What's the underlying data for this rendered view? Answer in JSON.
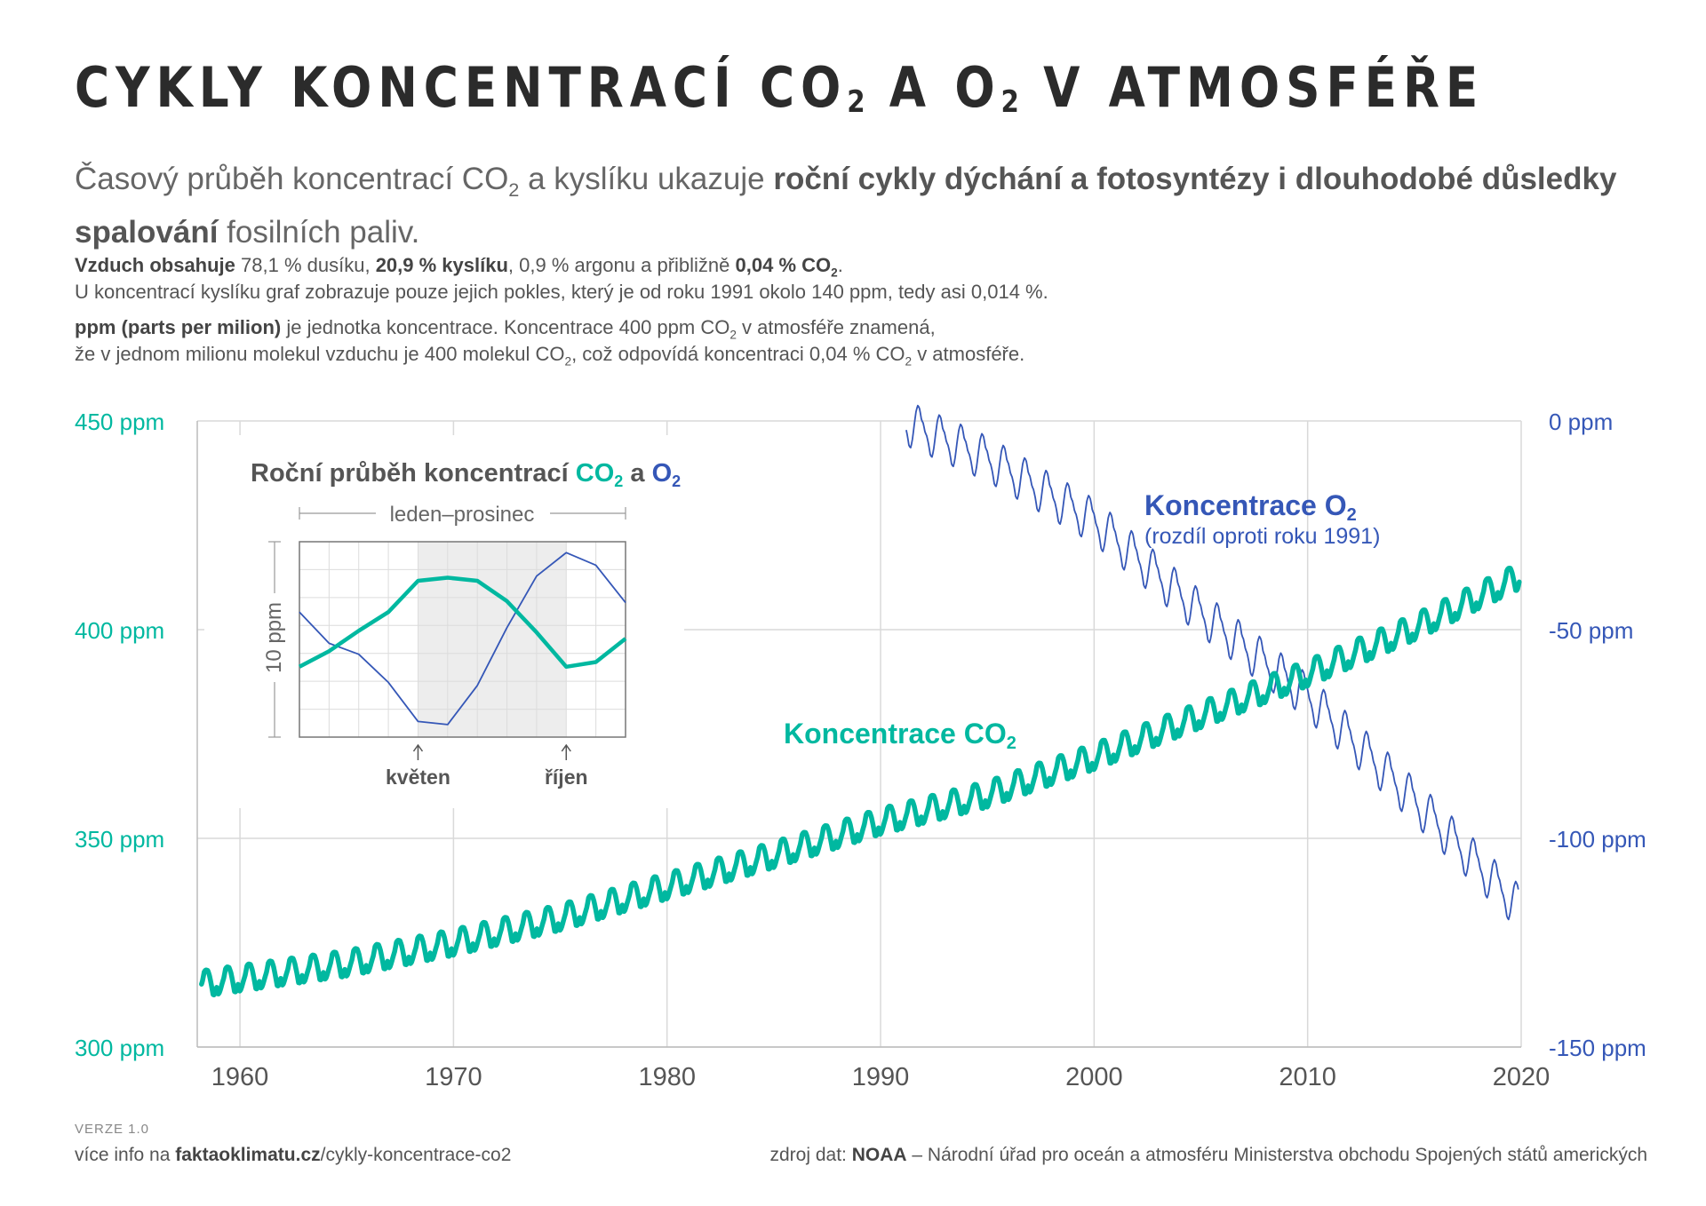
{
  "title": {
    "main": "CYKLY KONCENTRACÍ CO",
    "sub1": "2",
    "mid": " A O",
    "sub2": "2",
    "end": " V ATMOSFÉŘE"
  },
  "lead": {
    "p1": "Časový průběh koncentrací CO",
    "sub": "2",
    "p2": " a kyslíku ukazuje ",
    "b1": "roční cykly dýchání a fotosyntézy i dlouhodobé důsledky spalování",
    "p3": " fosilních paliv."
  },
  "info": {
    "l1_b": "Vzduch obsahuje",
    "l1_a": " 78,1 % dusíku, ",
    "l1_o2": "20,9 % kyslíku",
    "l1_c": ", 0,9 % argonu a přibližně ",
    "l1_co2": "0,04 % CO",
    "l1_co2_sub": "2",
    "l1_end": ".",
    "l2": "U koncentrací kyslíku graf zobrazuje pouze jejich pokles, který je od roku 1991 okolo 140 ppm, tedy asi 0,014 %.",
    "l3_b": "ppm (parts per milion)",
    "l3": " je jednotka koncentrace. Koncentrace 400 ppm CO",
    "l3_sub": "2",
    "l3_end": " v atmosféře znamená,",
    "l4_a": "že v jednom milionu molekul vzduchu je 400 molekul CO",
    "l4_sub": "2",
    "l4_b": ", což odpovídá koncentraci 0,04 % CO",
    "l4_sub2": "2",
    "l4_c": " v atmosféře."
  },
  "colors": {
    "co2": "#00b8a0",
    "o2": "#3557b7",
    "grid": "#d9d9d9",
    "text": "#555555",
    "shade": "#ededed"
  },
  "chart_data": {
    "type": "line",
    "x_range": [
      1958,
      2020
    ],
    "x_ticks": [
      "1960",
      "1970",
      "1980",
      "1990",
      "2000",
      "2010",
      "2020"
    ],
    "y_left": {
      "range": [
        300,
        450
      ],
      "unit": "ppm",
      "ticks": [
        "300 ppm",
        "350 ppm",
        "400 ppm",
        "450 ppm"
      ]
    },
    "y_right": {
      "range": [
        -150,
        0
      ],
      "unit": "ppm",
      "ticks": [
        "-150 ppm",
        "-100 ppm",
        "-50 ppm",
        "0 ppm"
      ]
    },
    "series": [
      {
        "name": "Koncentrace CO₂",
        "axis": "left",
        "trend_points": [
          [
            1958,
            315
          ],
          [
            1965,
            320
          ],
          [
            1970,
            325
          ],
          [
            1975,
            331
          ],
          [
            1980,
            338.5
          ],
          [
            1985,
            346
          ],
          [
            1990,
            354
          ],
          [
            1995,
            360.5
          ],
          [
            2000,
            369.5
          ],
          [
            2005,
            379.5
          ],
          [
            2010,
            389.5
          ],
          [
            2015,
            400.5
          ],
          [
            2020,
            413
          ]
        ],
        "seasonal_amplitude_ppm": 3.2
      },
      {
        "name": "Koncentrace O₂",
        "subtitle": "(rozdíl oproti roku 1991)",
        "axis": "right",
        "trend_points": [
          [
            1991,
            0
          ],
          [
            1995,
            -9
          ],
          [
            2000,
            -24
          ],
          [
            2005,
            -46
          ],
          [
            2010,
            -66
          ],
          [
            2015,
            -91
          ],
          [
            2019.8,
            -116
          ]
        ],
        "seasonal_amplitude_ppm": 5.5
      }
    ],
    "labels": {
      "co2": "Koncentrace CO",
      "o2": "Koncentrace O",
      "o2_sub": "(rozdíl oproti roku 1991)",
      "sub": "2"
    },
    "inset": {
      "title_a": "Roční průběh koncentrací ",
      "title_co2": "CO",
      "title_mid": " a ",
      "title_o2": "O",
      "title_sub": "2",
      "range_label": "leden–prosinec",
      "y_label": "10 ppm",
      "y_scale_ppm": 10,
      "months": [
        "1",
        "2",
        "3",
        "4",
        "5",
        "6",
        "7",
        "8",
        "9",
        "10",
        "11",
        "12"
      ],
      "shaded_months": [
        "5",
        "10"
      ],
      "markers": [
        "květen",
        "říjen"
      ],
      "co2_values_ppm": [
        2.0,
        3.0,
        4.3,
        5.5,
        7.5,
        7.7,
        7.5,
        6.2,
        4.2,
        2.0,
        2.3,
        3.8
      ],
      "o2_values_ppm": [
        5.5,
        3.5,
        2.8,
        1.0,
        -1.5,
        -1.7,
        0.8,
        4.5,
        7.8,
        9.3,
        8.5,
        6.1
      ]
    }
  },
  "footer": {
    "version": "VERZE 1.0",
    "left_a": "více info na ",
    "left_b": "faktaoklimatu.cz",
    "left_c": "/cykly-koncentrace-co2",
    "right_a": "zdroj dat: ",
    "right_b": "NOAA",
    "right_c": " – Národní úřad pro oceán a atmosféru Ministerstva obchodu Spojených států amerických"
  }
}
